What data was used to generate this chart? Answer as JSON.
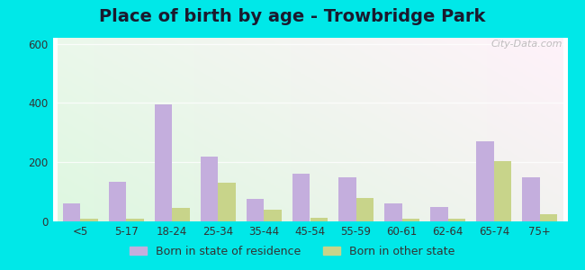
{
  "title": "Place of birth by age - Trowbridge Park",
  "categories": [
    "<5",
    "5-17",
    "18-24",
    "25-34",
    "35-44",
    "45-54",
    "55-59",
    "60-61",
    "62-64",
    "65-74",
    "75+"
  ],
  "born_in_state": [
    60,
    135,
    395,
    220,
    75,
    160,
    148,
    60,
    48,
    270,
    150
  ],
  "born_other_state": [
    10,
    8,
    45,
    130,
    38,
    12,
    78,
    8,
    8,
    205,
    25
  ],
  "bar_color_state": "#c4aedd",
  "bar_color_other": "#c8d48a",
  "ylim": [
    0,
    620
  ],
  "yticks": [
    0,
    200,
    400,
    600
  ],
  "legend_state": "Born in state of residence",
  "legend_other": "Born in other state",
  "outer_bg": "#00e8e8",
  "title_fontsize": 14,
  "watermark": "City-Data.com"
}
